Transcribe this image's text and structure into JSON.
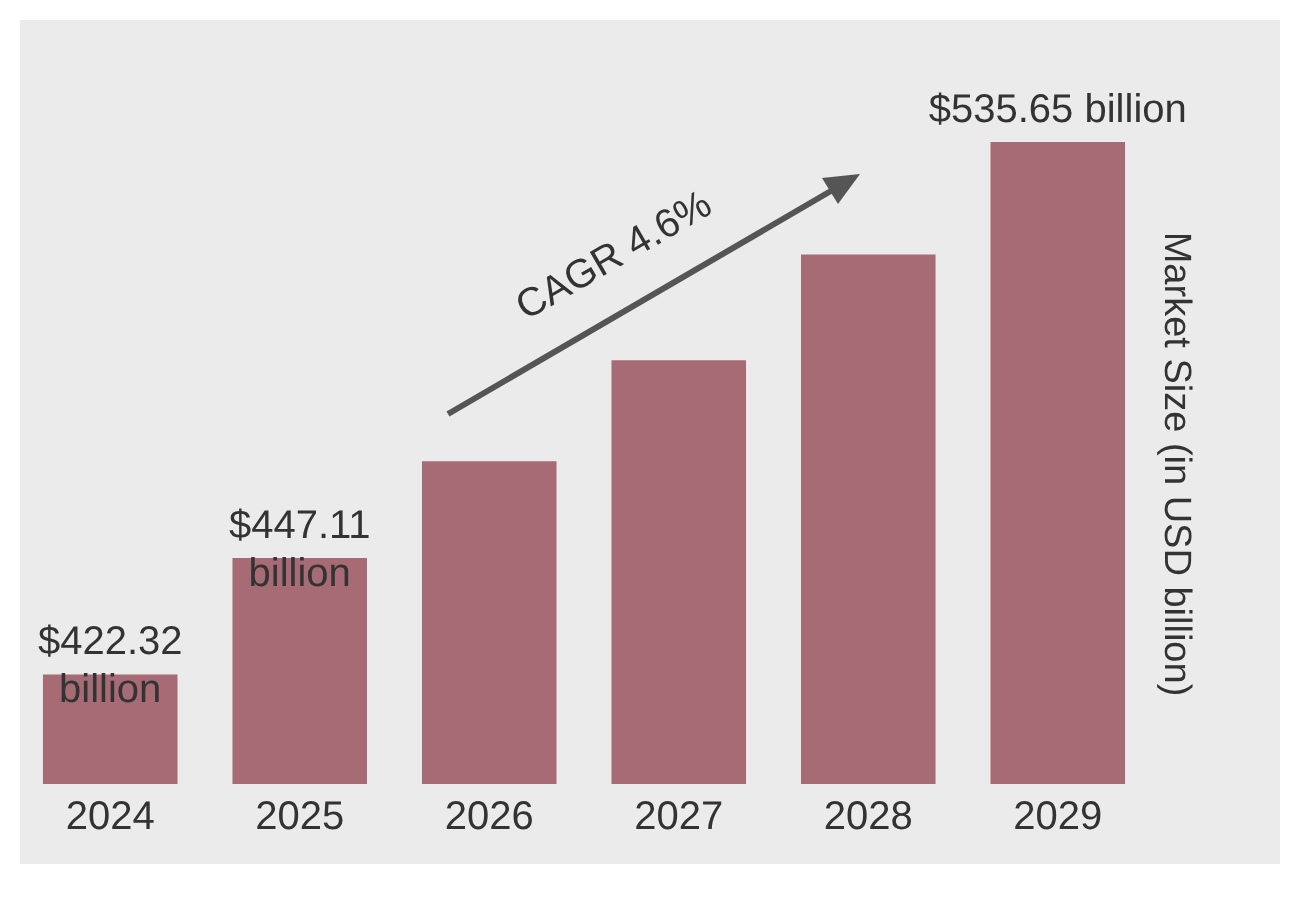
{
  "chart_data": {
    "type": "bar",
    "ylabel": "Market Size (in USD billion)",
    "categories": [
      "2024",
      "2025",
      "2026",
      "2027",
      "2028",
      "2029"
    ],
    "values": [
      422.32,
      447.11,
      467.7,
      489.2,
      511.7,
      535.65
    ],
    "value_labels": [
      "$422.32 billion",
      "$447.11 billion",
      null,
      null,
      null,
      "$535.65 billion"
    ],
    "color": "#a66b75",
    "ylim": [
      399,
      535.65
    ],
    "tick_labels": "x",
    "annotations": [
      "CAGR 4.6%"
    ]
  }
}
